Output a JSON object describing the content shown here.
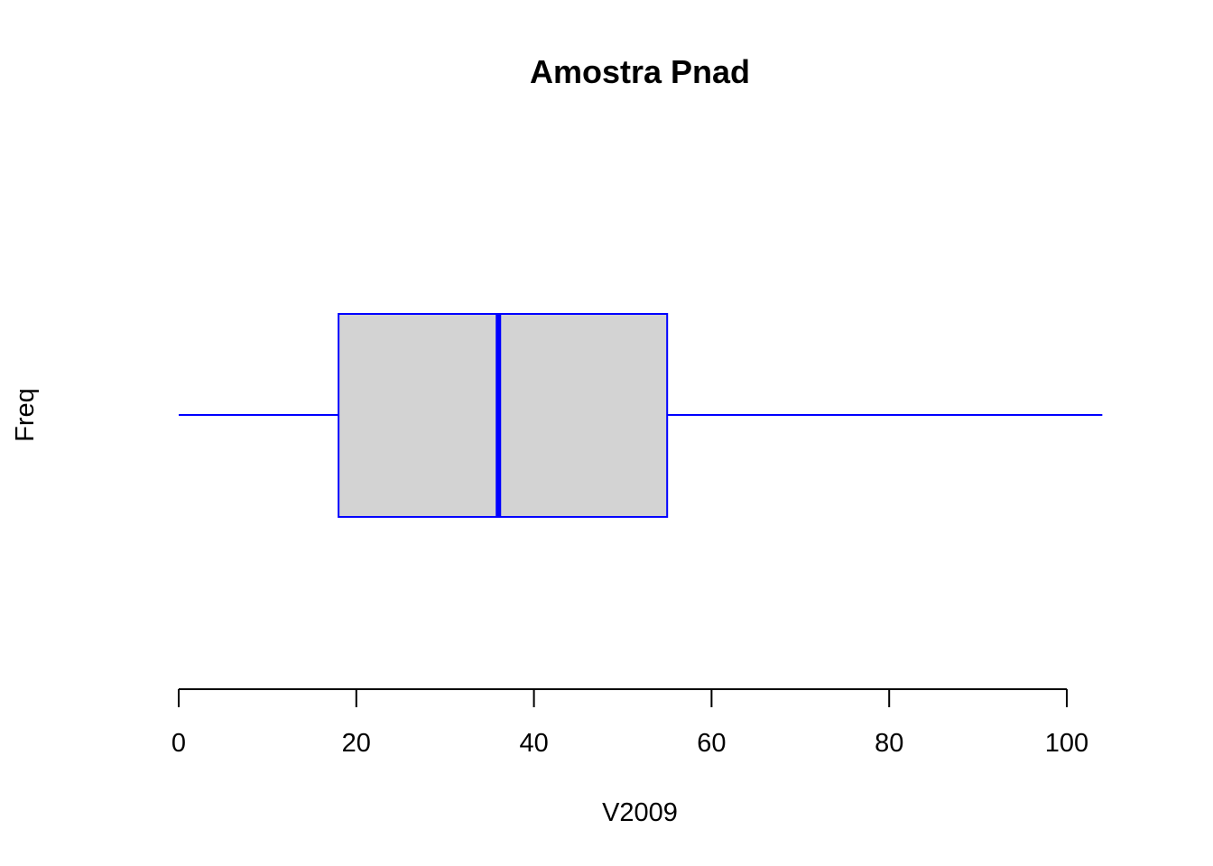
{
  "chart_data": {
    "type": "boxplot",
    "orientation": "horizontal",
    "title": "Amostra Pnad",
    "xlabel": "V2009",
    "ylabel": "Freq",
    "xlim": [
      0,
      104
    ],
    "ticks": [
      0,
      20,
      40,
      60,
      80,
      100
    ],
    "tick_labels": [
      "0",
      "20",
      "40",
      "60",
      "80",
      "100"
    ],
    "grid": false,
    "stats": {
      "whisker_low": 0,
      "q1": 18,
      "median": 36,
      "q3": 55,
      "whisker_high": 104
    },
    "colors": {
      "border": "#0000ff",
      "fill": "#d3d3d3"
    }
  }
}
